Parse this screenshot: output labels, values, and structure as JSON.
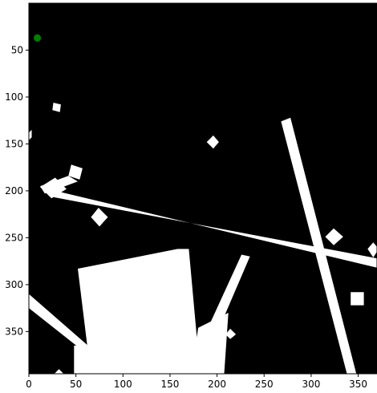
{
  "chart_data": {
    "type": "heatmap",
    "title": "",
    "xlabel": "",
    "ylabel": "",
    "xlim": [
      0,
      370
    ],
    "ylim": [
      395,
      0
    ],
    "y_inverted": true,
    "colormap": [
      "#000000",
      "#ffffff"
    ],
    "grid": false,
    "x_ticks": [
      0,
      50,
      100,
      150,
      200,
      250,
      300,
      350
    ],
    "y_ticks": [
      50,
      100,
      150,
      200,
      250,
      300,
      350
    ],
    "marker": {
      "x": 9,
      "y": 37,
      "color": "#008000"
    },
    "obstacles": [
      {
        "kind": "polygon",
        "points": [
          [
            52,
            190
          ],
          [
            17,
            203
          ],
          [
            12,
            195
          ],
          [
            42,
            184
          ]
        ]
      },
      {
        "kind": "polygon",
        "points": [
          [
            20,
            198
          ],
          [
            370,
            282
          ],
          [
            370,
            272
          ],
          [
            22,
            206
          ]
        ]
      },
      {
        "kind": "polygon",
        "points": [
          [
            268,
            126
          ],
          [
            338,
            395
          ],
          [
            348,
            395
          ],
          [
            278,
            122
          ]
        ]
      },
      {
        "kind": "polygon",
        "points": [
          [
            52,
            283
          ],
          [
            158,
            262
          ],
          [
            180,
            430
          ],
          [
            70,
            430
          ]
        ]
      },
      {
        "kind": "polygon",
        "points": [
          [
            158,
            262
          ],
          [
            170,
            262
          ],
          [
            182,
            395
          ],
          [
            168,
            395
          ]
        ]
      },
      {
        "kind": "polygon",
        "points": [
          [
            170,
            412
          ],
          [
            180,
            346
          ],
          [
            212,
            330
          ],
          [
            205,
            432
          ]
        ]
      },
      {
        "kind": "polygon",
        "points": [
          [
            0,
            310
          ],
          [
            80,
            380
          ],
          [
            82,
            390
          ],
          [
            0,
            325
          ]
        ]
      },
      {
        "kind": "polygon",
        "points": [
          [
            168,
            395
          ],
          [
            226,
            268
          ],
          [
            235,
            270
          ],
          [
            175,
            410
          ]
        ]
      },
      {
        "kind": "polygon",
        "points": [
          [
            48,
            365
          ],
          [
            148,
            365
          ],
          [
            150,
            395
          ],
          [
            48,
            395
          ]
        ]
      },
      {
        "kind": "polygon",
        "points": [
          [
            12,
            196
          ],
          [
            28,
            186
          ],
          [
            40,
            198
          ],
          [
            24,
            208
          ]
        ]
      },
      {
        "kind": "polygon",
        "points": [
          [
            26,
            106
          ],
          [
            34,
            108
          ],
          [
            33,
            116
          ],
          [
            25,
            114
          ]
        ]
      },
      {
        "kind": "polygon",
        "points": [
          [
            45,
            172
          ],
          [
            57,
            176
          ],
          [
            54,
            188
          ],
          [
            42,
            184
          ]
        ]
      },
      {
        "kind": "polygon",
        "points": [
          [
            74,
            218
          ],
          [
            84,
            228
          ],
          [
            75,
            238
          ],
          [
            66,
            228
          ]
        ]
      },
      {
        "kind": "polygon",
        "points": [
          [
            196,
            141
          ],
          [
            202,
            148
          ],
          [
            196,
            155
          ],
          [
            189,
            148
          ]
        ]
      },
      {
        "kind": "polygon",
        "points": [
          [
            324,
            240
          ],
          [
            334,
            249
          ],
          [
            324,
            258
          ],
          [
            315,
            249
          ]
        ]
      },
      {
        "kind": "polygon",
        "points": [
          [
            366,
            255
          ],
          [
            372,
            262
          ],
          [
            366,
            271
          ],
          [
            360,
            262
          ]
        ]
      },
      {
        "kind": "polygon",
        "points": [
          [
            342,
            308
          ],
          [
            356,
            308
          ],
          [
            356,
            322
          ],
          [
            342,
            322
          ]
        ]
      },
      {
        "kind": "polygon",
        "points": [
          [
            214,
            347
          ],
          [
            220,
            353
          ],
          [
            214,
            358
          ],
          [
            209,
            353
          ]
        ]
      },
      {
        "kind": "polygon",
        "points": [
          [
            32,
            390
          ],
          [
            37,
            395
          ],
          [
            27,
            395
          ]
        ]
      },
      {
        "kind": "polygon",
        "points": [
          [
            0,
            138
          ],
          [
            3,
            135
          ],
          [
            3,
            143
          ],
          [
            0,
            146
          ]
        ]
      }
    ]
  }
}
